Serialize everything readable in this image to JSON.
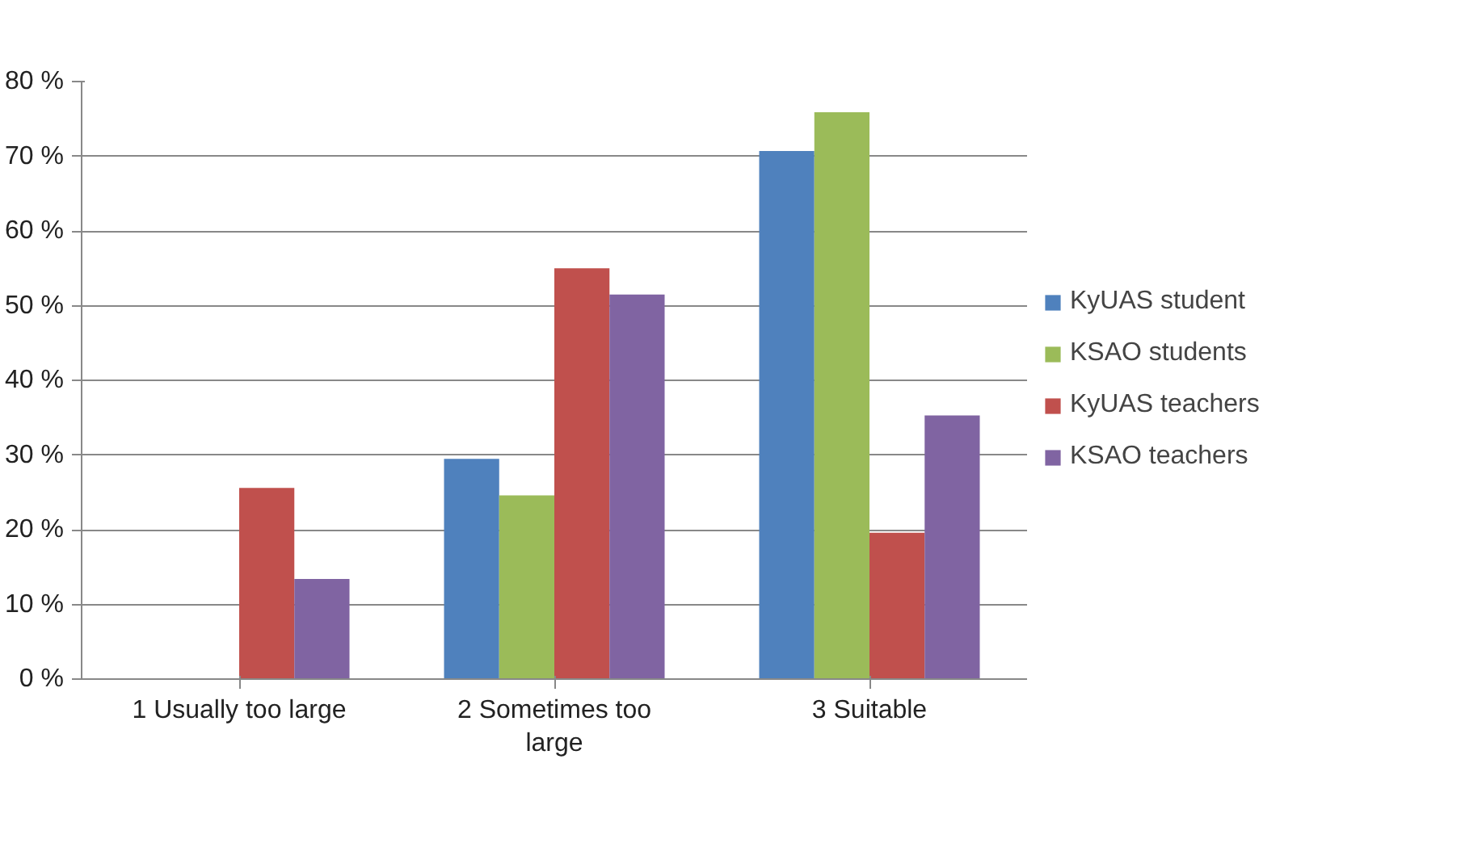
{
  "chart_data": {
    "type": "bar",
    "categories": [
      "1 Usually too large",
      "2 Sometimes too large",
      "3 Suitable"
    ],
    "series": [
      {
        "name": "KyUAS student",
        "color": "#4f81bd",
        "values": [
          0,
          29.5,
          70.7
        ]
      },
      {
        "name": "KSAO students",
        "color": "#9bbb59",
        "values": [
          0,
          24.6,
          75.9
        ]
      },
      {
        "name": "KyUAS teachers",
        "color": "#c0504d",
        "values": [
          25.6,
          55,
          19.6
        ]
      },
      {
        "name": "KSAO teachers",
        "color": "#8064a2",
        "values": [
          13.4,
          51.5,
          35.3
        ]
      }
    ],
    "ylim": [
      0,
      80
    ],
    "yticks": [
      {
        "value": 0,
        "label": "0 %"
      },
      {
        "value": 10,
        "label": "10 %"
      },
      {
        "value": 20,
        "label": "20 %"
      },
      {
        "value": 30,
        "label": "30 %"
      },
      {
        "value": 40,
        "label": "40 %"
      },
      {
        "value": 50,
        "label": "50 %"
      },
      {
        "value": 60,
        "label": "60 %"
      },
      {
        "value": 70,
        "label": "70 %"
      },
      {
        "value": 80,
        "label": "80 %"
      }
    ],
    "grid": "y",
    "legend": "right"
  }
}
